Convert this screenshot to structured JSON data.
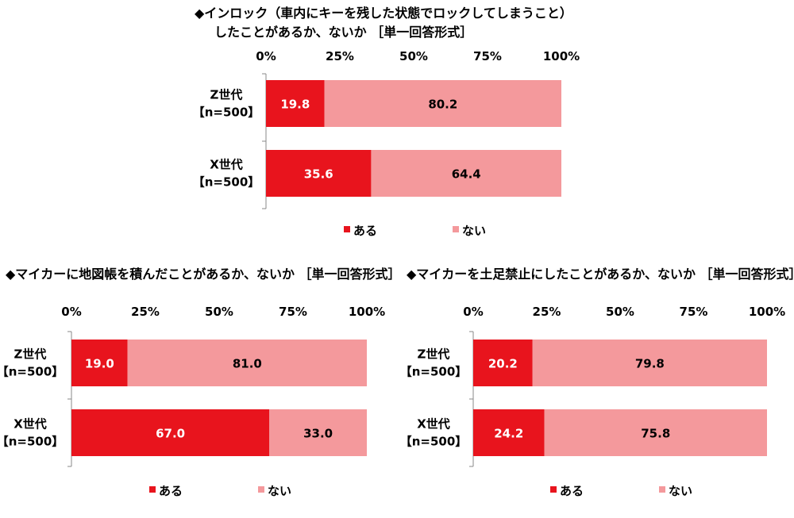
{
  "colors": {
    "aru": "#e8141d",
    "nai": "#f4999c",
    "axis": "#888888"
  },
  "chart_data": [
    {
      "type": "bar",
      "orientation": "horizontal",
      "stacked": true,
      "title_lines": [
        "◆インロック（車内にキーを残した状態でロックしてしまうこと）",
        "したことがあるか、ないか ［単一回答形式］"
      ],
      "xlim": [
        0,
        100
      ],
      "ticks": [
        "0%",
        "25%",
        "50%",
        "75%",
        "100%"
      ],
      "categories": [
        [
          "Z世代",
          "【n=500】"
        ],
        [
          "X世代",
          "【n=500】"
        ]
      ],
      "series": [
        {
          "name": "ある",
          "values": [
            19.8,
            35.6
          ],
          "labels": [
            "19.8",
            "35.6"
          ]
        },
        {
          "name": "ない",
          "values": [
            80.2,
            64.4
          ],
          "labels": [
            "80.2",
            "64.4"
          ]
        }
      ],
      "legend": "bottom"
    },
    {
      "type": "bar",
      "orientation": "horizontal",
      "stacked": true,
      "title_lines": [
        "◆マイカーに地図帳を積んだことがあるか、ないか ［単一回答形式］"
      ],
      "xlim": [
        0,
        100
      ],
      "ticks": [
        "0%",
        "25%",
        "50%",
        "75%",
        "100%"
      ],
      "categories": [
        [
          "Z世代",
          "【n=500】"
        ],
        [
          "X世代",
          "【n=500】"
        ]
      ],
      "series": [
        {
          "name": "ある",
          "values": [
            19.0,
            67.0
          ],
          "labels": [
            "19.0",
            "67.0"
          ]
        },
        {
          "name": "ない",
          "values": [
            81.0,
            33.0
          ],
          "labels": [
            "81.0",
            "33.0"
          ]
        }
      ],
      "legend": "bottom"
    },
    {
      "type": "bar",
      "orientation": "horizontal",
      "stacked": true,
      "title_lines": [
        "◆マイカーを土足禁止にしたことがあるか、ないか ［単一回答形式］"
      ],
      "xlim": [
        0,
        100
      ],
      "ticks": [
        "0%",
        "25%",
        "50%",
        "75%",
        "100%"
      ],
      "categories": [
        [
          "Z世代",
          "【n=500】"
        ],
        [
          "X世代",
          "【n=500】"
        ]
      ],
      "series": [
        {
          "name": "ある",
          "values": [
            20.2,
            24.2
          ],
          "labels": [
            "20.2",
            "24.2"
          ]
        },
        {
          "name": "ない",
          "values": [
            79.8,
            75.8
          ],
          "labels": [
            "79.8",
            "75.8"
          ]
        }
      ],
      "legend": "bottom"
    }
  ]
}
